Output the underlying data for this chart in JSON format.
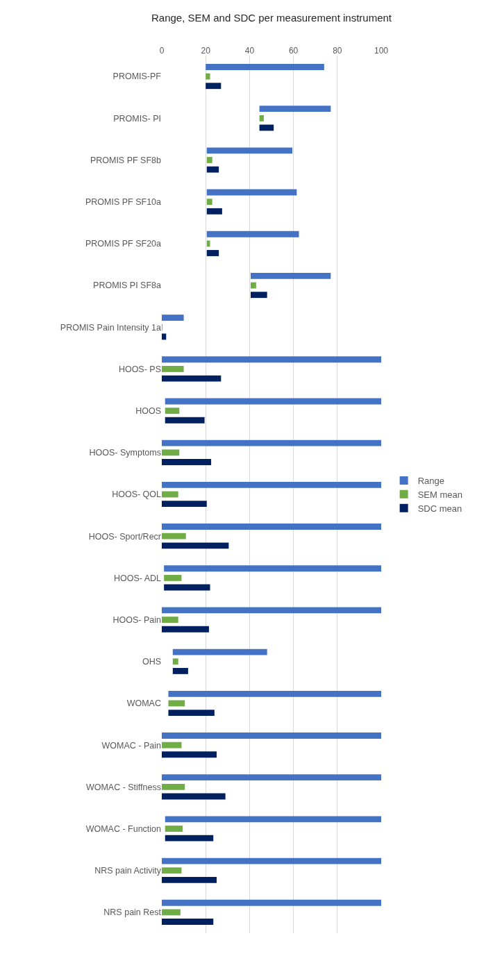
{
  "chart_data": {
    "type": "bar",
    "orientation": "horizontal",
    "title": "Range, SEM and SDC per measurement instrument",
    "categories": [
      "PROMIS-PF",
      "PROMIS- PI",
      "PROMIS PF SF8b",
      "PROMIS PF SF10a",
      "PROMIS PF SF20a",
      "PROMIS PI SF8a",
      "PROMIS Pain Intensity 1a",
      "HOOS- PS",
      "HOOS",
      "HOOS- Symptoms",
      "HOOS- QOL",
      "HOOS- Sport/Recr",
      "HOOS- ADL",
      "HOOS- Pain",
      "OHS",
      "WOMAC",
      "WOMAC - Pain",
      "WOMAC - Stiffness",
      "WOMAC - Function",
      "NRS pain Activity",
      "NRS pain Rest"
    ],
    "series": [
      {
        "name": "Range",
        "color": "#4472c4",
        "base": [
          20,
          44.5,
          20.5,
          20.5,
          20.5,
          40.5,
          0,
          0,
          1.5,
          0,
          0,
          0,
          1,
          0,
          5,
          3,
          0,
          0,
          1.5,
          0,
          0
        ],
        "values": [
          54,
          32.5,
          39,
          41,
          42,
          36.5,
          10,
          100,
          98.5,
          100,
          100,
          100,
          99,
          100,
          43,
          97,
          100,
          100,
          98.5,
          100,
          100
        ]
      },
      {
        "name": "SEM mean",
        "color": "#70ad47",
        "base": [
          20,
          44.5,
          20.5,
          20.5,
          20.5,
          40.5,
          0,
          0,
          1.5,
          0,
          0,
          0,
          1,
          0,
          5,
          3,
          0,
          0,
          1.5,
          0,
          0
        ],
        "values": [
          2,
          2,
          2.5,
          2.5,
          1.5,
          2.5,
          0.3,
          10,
          6.5,
          8,
          7.5,
          11,
          8,
          7.5,
          2.5,
          7.5,
          9,
          10.5,
          8,
          9,
          8.5
        ]
      },
      {
        "name": "SDC mean",
        "color": "#002060",
        "base": [
          20,
          44.5,
          20.5,
          20.5,
          20.5,
          40.5,
          0,
          0,
          1.5,
          0,
          0,
          0,
          1,
          0,
          5,
          3,
          0,
          0,
          1.5,
          0,
          0
        ],
        "values": [
          7,
          6.5,
          5.5,
          7,
          5.5,
          7.5,
          2,
          27,
          18,
          22.5,
          20.5,
          30.5,
          21,
          21.5,
          7,
          21,
          25,
          29,
          22,
          25,
          23.5
        ]
      }
    ],
    "xlim": [
      0,
      100
    ],
    "xticks": [
      0,
      20,
      40,
      60,
      80,
      100
    ],
    "grid": "x",
    "legend": "right"
  }
}
